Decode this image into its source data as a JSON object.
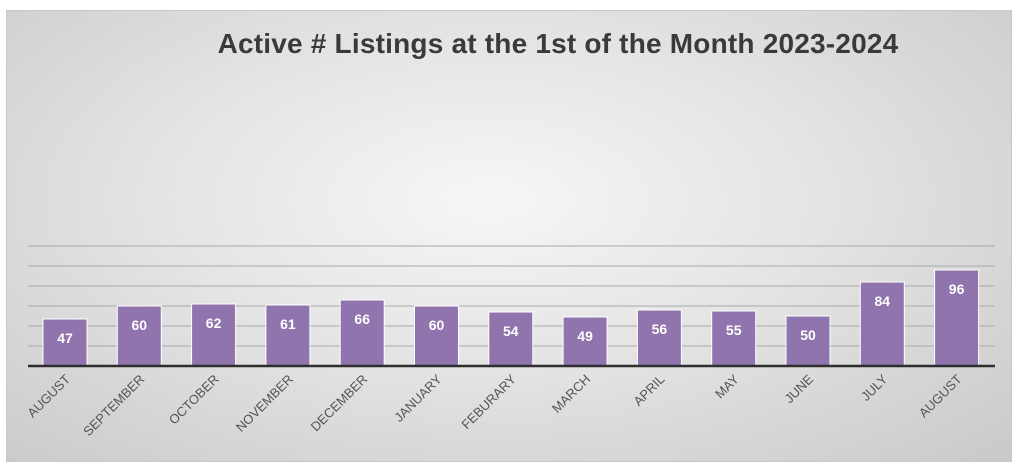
{
  "chart_data": {
    "type": "bar",
    "title": "Active # Listings at the 1st of the Month 2023-2024",
    "xlabel": "",
    "ylabel": "",
    "categories": [
      "AUGUST",
      "SEPTEMBER",
      "OCTOBER",
      "NOVEMBER",
      "DECEMBER",
      "JANUARY",
      "FEBURARY",
      "MARCH",
      "APRIL",
      "MAY",
      "JUNE",
      "JULY",
      "AUGUST"
    ],
    "values": [
      47,
      60,
      62,
      61,
      66,
      60,
      54,
      49,
      56,
      55,
      50,
      84,
      96
    ],
    "ylim": [
      0,
      120
    ],
    "yticks": [
      0,
      20,
      40,
      60,
      80,
      100,
      120
    ],
    "grid": true,
    "legend": "none",
    "show_value_labels": true,
    "colors": {
      "bar": "#8f74ad",
      "gridline": "#a9a9a9",
      "title": "#3a3a3a"
    }
  }
}
